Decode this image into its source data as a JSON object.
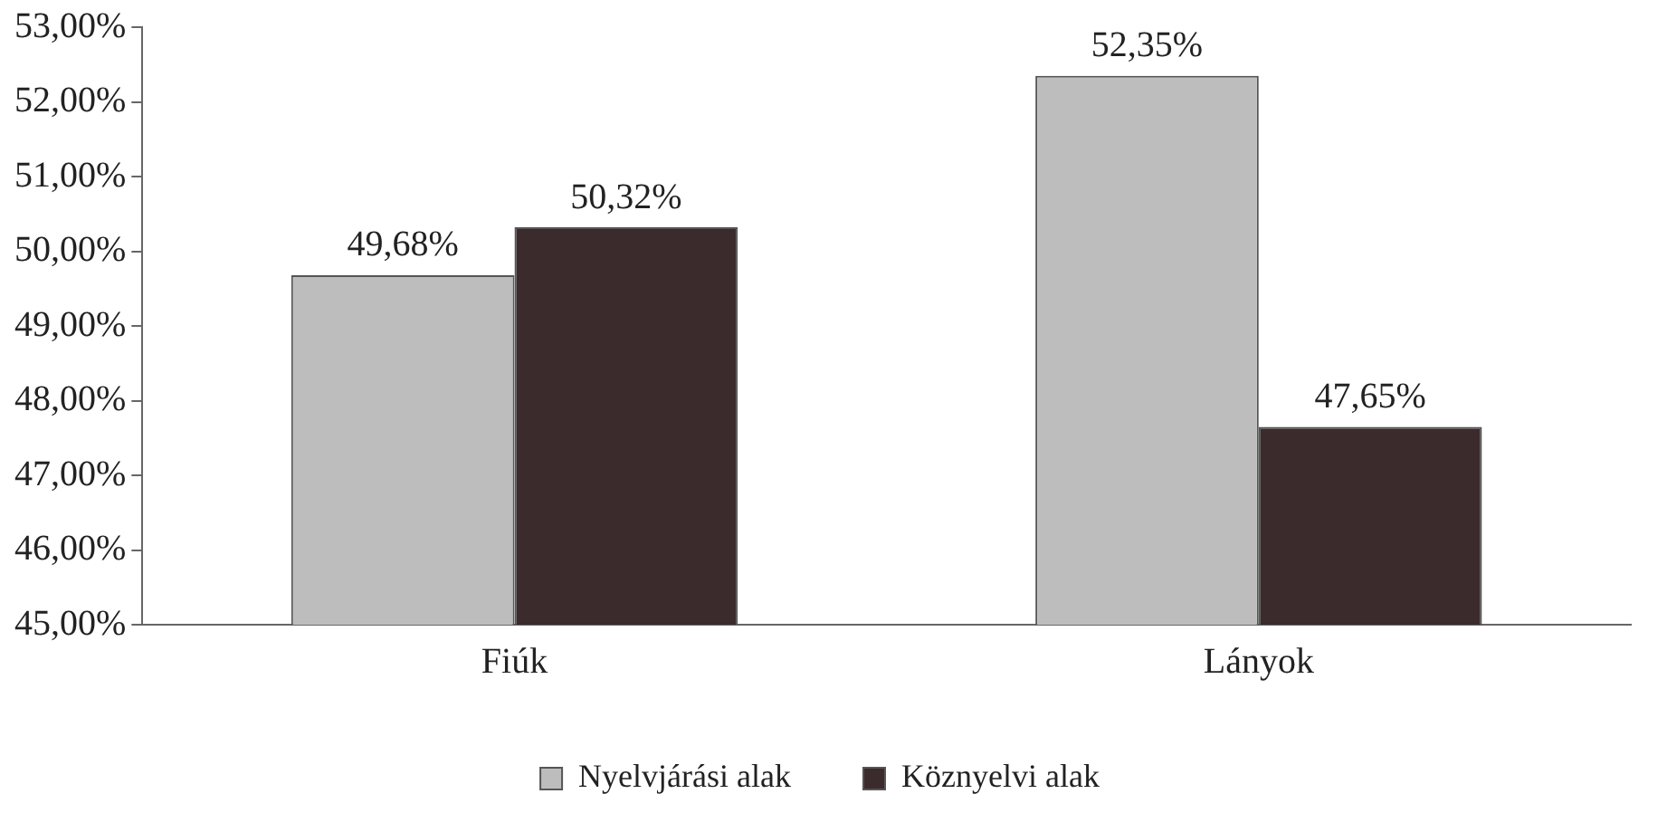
{
  "chart_data": {
    "type": "bar",
    "categories": [
      "Fiúk",
      "Lányok"
    ],
    "series": [
      {
        "name": "Nyelvjárási alak",
        "color": "#bdbdbd",
        "values": [
          49.68,
          52.35
        ],
        "value_labels": [
          "49,68%",
          "52,35%"
        ]
      },
      {
        "name": "Köznyelvi alak",
        "color": "#3b2b2d",
        "values": [
          50.32,
          47.65
        ],
        "value_labels": [
          "50,32%",
          "47,65%"
        ]
      }
    ],
    "ylim": [
      45,
      53
    ],
    "yticks": [
      {
        "value": 45,
        "label": "45,00%"
      },
      {
        "value": 46,
        "label": "46,00%"
      },
      {
        "value": 47,
        "label": "47,00%"
      },
      {
        "value": 48,
        "label": "48,00%"
      },
      {
        "value": 49,
        "label": "49,00%"
      },
      {
        "value": 50,
        "label": "50,00%"
      },
      {
        "value": 51,
        "label": "51,00%"
      },
      {
        "value": 52,
        "label": "52,00%"
      },
      {
        "value": 53,
        "label": "53,00%"
      }
    ],
    "grid": false,
    "legend": "bottom"
  }
}
